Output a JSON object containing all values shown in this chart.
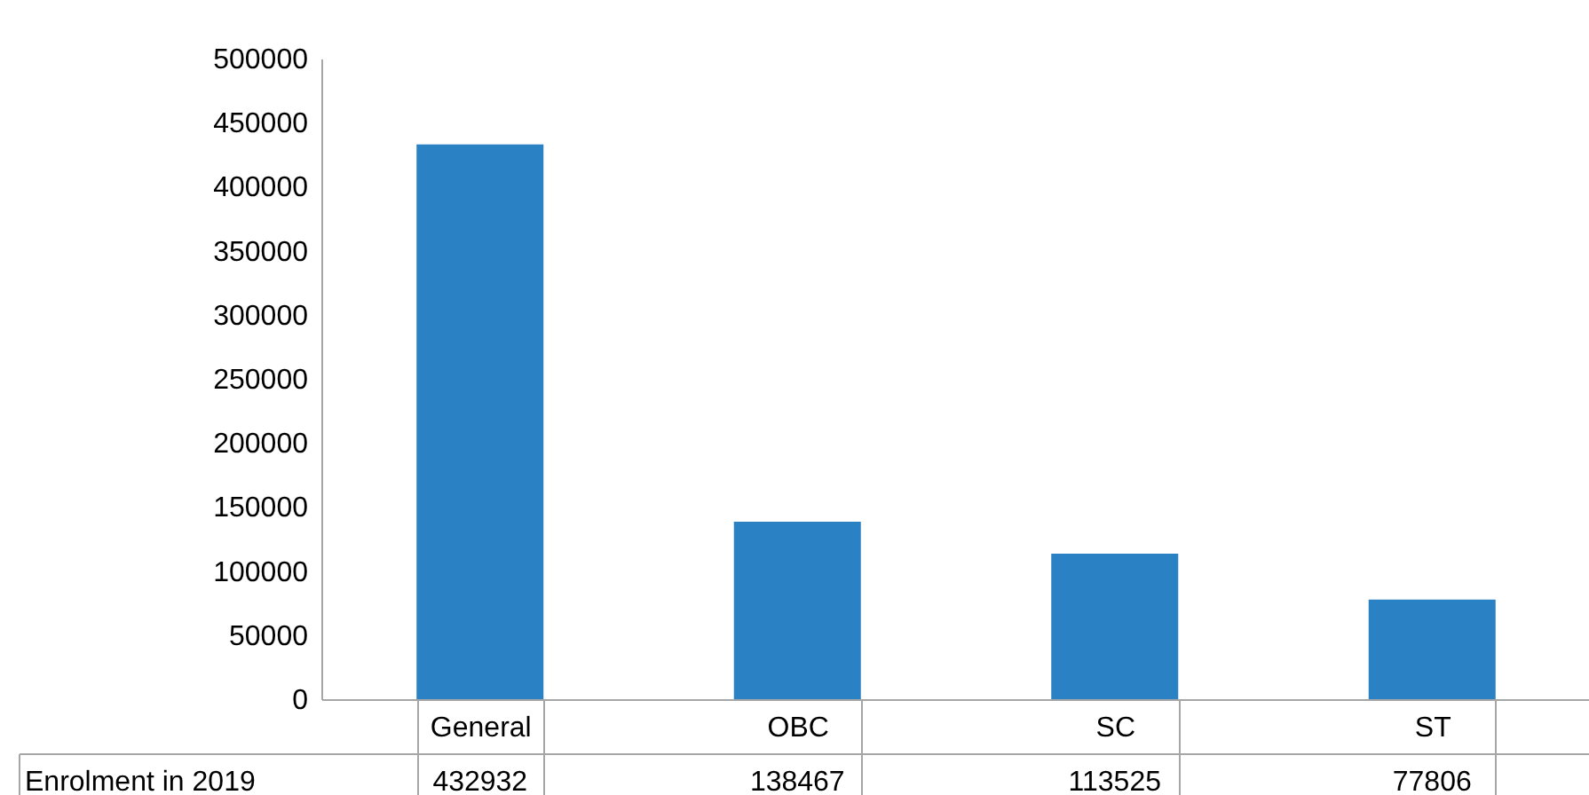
{
  "chart_data": {
    "type": "bar",
    "categories": [
      "General",
      "OBC",
      "SC",
      "ST"
    ],
    "series": [
      {
        "name": "Enrolment in 2019",
        "color": "#2a81c4",
        "values": [
          432932,
          138467,
          113525,
          77806
        ]
      }
    ],
    "ylim": [
      0,
      500000
    ],
    "yticks": [
      0,
      50000,
      100000,
      150000,
      200000,
      250000,
      300000,
      350000,
      400000,
      450000,
      500000
    ],
    "data_labels": true
  }
}
